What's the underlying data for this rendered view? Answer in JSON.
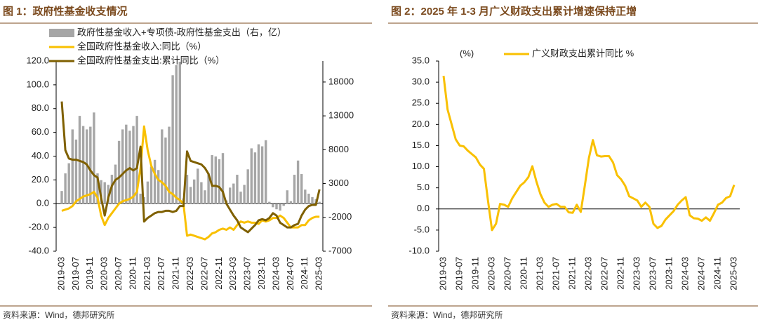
{
  "chart_data": [
    {
      "type": "combo",
      "title": "图 1：政府性基金收支情况",
      "source": "资料来源：Wind，德邦研究所",
      "legend": "upper left",
      "categories": [
        "2019-03",
        null,
        null,
        null,
        "2019-07",
        null,
        null,
        null,
        "2019-11",
        null,
        null,
        null,
        "2020-03",
        null,
        null,
        null,
        "2020-07",
        null,
        null,
        null,
        "2020-11",
        null,
        null,
        null,
        "2021-03",
        null,
        null,
        null,
        "2021-07",
        null,
        null,
        null,
        "2021-11",
        null,
        null,
        null,
        "2022-03",
        null,
        null,
        null,
        "2022-07",
        null,
        null,
        null,
        "2022-11",
        null,
        null,
        null,
        "2023-03",
        null,
        null,
        null,
        "2023-07",
        null,
        null,
        null,
        "2023-11",
        null,
        null,
        null,
        "2024-03",
        null,
        null,
        null,
        "2024-07",
        null,
        null,
        null,
        "2024-11",
        null,
        null,
        null,
        "2025-03"
      ],
      "ylim": [
        -40,
        120
      ],
      "yticks": [
        {
          "value": -40,
          "label": "-40.0"
        },
        {
          "value": -20,
          "label": "-20.0"
        },
        {
          "value": 0,
          "label": "0.0"
        },
        {
          "value": 20,
          "label": "20.0"
        },
        {
          "value": 40,
          "label": "40.0"
        },
        {
          "value": 60,
          "label": "60.0"
        },
        {
          "value": 80,
          "label": "80.0"
        },
        {
          "value": 100,
          "label": "100.0"
        },
        {
          "value": 120,
          "label": "120.0"
        }
      ],
      "y2lim": [
        -7000,
        21100
      ],
      "y2ticks": [
        -7000,
        -2000,
        3000,
        8000,
        13000,
        18000
      ],
      "series": [
        {
          "name": "政府性基金收入+专项债-政府性基金支出（右，亿）",
          "type": "bar",
          "axis": "y2",
          "color": "#a6a6a6",
          "values": [
            1900,
            4500,
            6000,
            11000,
            9500,
            13000,
            11500,
            11000,
            11400,
            13500,
            4500,
            3500,
            3200,
            2800,
            4300,
            5800,
            9300,
            11000,
            11700,
            10800,
            11500,
            13000,
            1500,
            1000,
            3300,
            5500,
            6500,
            5000,
            11000,
            9800,
            11400,
            19000,
            20500,
            21000,
            800,
            4300,
            2500,
            3600,
            5200,
            3200,
            2000,
            4500,
            7200,
            7000,
            6600,
            7500,
            500,
            2400,
            3000,
            4300,
            1800,
            2800,
            5100,
            8200,
            7600,
            8800,
            8500,
            9400,
            300,
            -500,
            -800,
            -1000,
            -300,
            2000,
            400,
            4300,
            6400,
            4400,
            2100,
            1500,
            1000,
            700,
            300
          ]
        },
        {
          "name": "全国政府性基金收入:同比（%）",
          "type": "line",
          "color": "#f9c000",
          "values": [
            -6,
            -5,
            -4,
            -2,
            2,
            4,
            6,
            7,
            8,
            10,
            5,
            -10,
            -18,
            -12,
            -8,
            -4,
            0,
            2,
            3,
            4,
            6,
            10,
            30,
            65,
            45,
            32,
            25,
            20,
            18,
            15,
            10,
            8,
            5,
            3,
            0,
            -27,
            -26,
            -27,
            -28,
            -29,
            -30,
            -28,
            -25,
            -24,
            -22,
            -21,
            -22,
            -20,
            -22,
            -18,
            -15,
            -16,
            -15,
            -16,
            -16,
            -17,
            -14,
            -15,
            -14,
            -12,
            -12,
            -10,
            -12,
            -16,
            -20,
            -20,
            -20,
            -18,
            -18,
            -14,
            -12,
            -11,
            -11
          ]
        },
        {
          "name": "全国政府性基金支出:累计同比（%）",
          "type": "line",
          "color": "#7f6000",
          "values": [
            86,
            45,
            38,
            37,
            37,
            36,
            35,
            33,
            28,
            24,
            22,
            5,
            -10,
            5,
            15,
            20,
            22,
            25,
            28,
            30,
            28,
            30,
            48,
            -15,
            -12,
            -10,
            -8,
            -7,
            -7,
            -6,
            -6,
            -7,
            -6,
            -2,
            -2,
            44,
            36,
            35,
            34,
            33,
            30,
            25,
            15,
            15,
            14,
            10,
            0,
            -5,
            -10,
            -14,
            -20,
            -22,
            -24,
            -21,
            -18,
            -14,
            -13,
            -14,
            -12,
            -8,
            -10,
            -16,
            -18,
            -20,
            -20,
            -18,
            -17,
            -10,
            -5,
            -2,
            -1,
            -1,
            12
          ]
        }
      ]
    },
    {
      "type": "line",
      "title": "图 2：2025 年 1-3 月广义财政支出累计增速保持正增",
      "source": "资料来源：Wind，德邦研究所",
      "legend": "upper center",
      "unit_label": "(%)",
      "categories": [
        "2019-03",
        null,
        null,
        null,
        "2019-07",
        null,
        null,
        null,
        "2019-11",
        null,
        null,
        null,
        "2020-03",
        null,
        null,
        null,
        "2020-07",
        null,
        null,
        null,
        "2020-11",
        null,
        null,
        null,
        "2021-03",
        null,
        null,
        null,
        "2021-07",
        null,
        null,
        null,
        "2021-11",
        null,
        null,
        null,
        "2022-03",
        null,
        null,
        null,
        "2022-07",
        null,
        null,
        null,
        "2022-11",
        null,
        null,
        null,
        "2023-03",
        null,
        null,
        null,
        "2023-07",
        null,
        null,
        null,
        "2023-11",
        null,
        null,
        null,
        "2024-03",
        null,
        null,
        null,
        "2024-07",
        null,
        null,
        null,
        "2024-11",
        null,
        null,
        null,
        "2025-03"
      ],
      "ylim": [
        -10,
        35
      ],
      "yticks": [
        {
          "value": -10,
          "label": "-10.0"
        },
        {
          "value": -5,
          "label": "-5.0"
        },
        {
          "value": 0,
          "label": "0.0"
        },
        {
          "value": 5,
          "label": "5.0"
        },
        {
          "value": 10,
          "label": "10.0"
        },
        {
          "value": 15,
          "label": "15.0"
        },
        {
          "value": 20,
          "label": "20.0"
        },
        {
          "value": 25,
          "label": "25.0"
        },
        {
          "value": 30,
          "label": "30.0"
        },
        {
          "value": 35,
          "label": "35.0"
        }
      ],
      "series": [
        {
          "name": "广义财政支出累计同比 %",
          "type": "line",
          "color": "#f9c000",
          "values": [
            31.5,
            23.5,
            20,
            16.5,
            15,
            14.8,
            13.8,
            13,
            12.2,
            10.5,
            9.5,
            2,
            -5,
            -3.5,
            1.2,
            1,
            0.5,
            2.5,
            4,
            5.5,
            6.3,
            7.5,
            10.1,
            6.5,
            3.5,
            1.5,
            0.5,
            1,
            1.2,
            0.5,
            0.5,
            -0.8,
            -0.9,
            1,
            -0.7,
            5.5,
            12,
            16.3,
            12.7,
            12.4,
            12.5,
            12.5,
            11,
            8,
            7,
            5.5,
            3,
            2.5,
            2,
            0.5,
            1.5,
            0.5,
            -3.5,
            -4.5,
            -4,
            -2.5,
            -1.5,
            -0.5,
            1,
            2,
            2.8,
            -1.5,
            -2.2,
            -2.3,
            -2.8,
            -2,
            -2.8,
            -1,
            1,
            1.5,
            2.6,
            3,
            5.7
          ]
        }
      ]
    }
  ]
}
